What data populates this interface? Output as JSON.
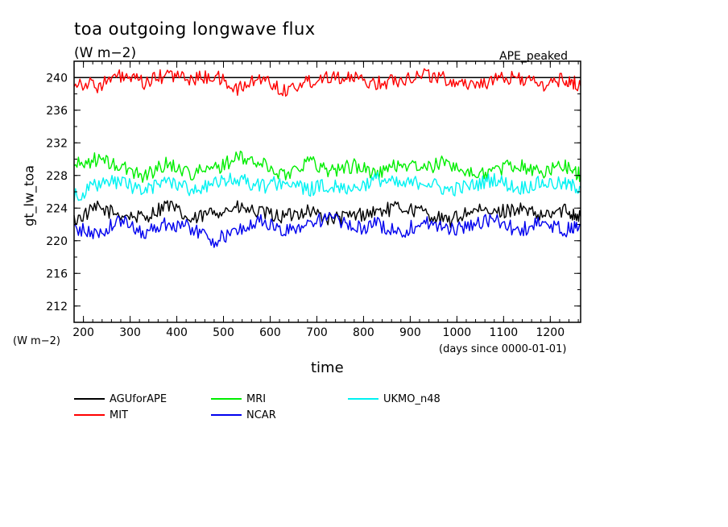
{
  "chart_data": {
    "type": "line",
    "title": "toa outgoing longwave flux",
    "subtitle": "(W m−2)",
    "corner_label": "APE_peaked",
    "xlabel": "time",
    "ylabel": "gt_lw_toa",
    "yunit": "(W m−2)",
    "xunit": "(days since 0000-01-01)",
    "xlim": [
      180,
      1265
    ],
    "ylim": [
      210,
      242
    ],
    "x_ticks": [
      "200",
      "300",
      "400",
      "500",
      "600",
      "700",
      "800",
      "900",
      "1000",
      "1100",
      "1200"
    ],
    "y_ticks": [
      "212",
      "216",
      "220",
      "224",
      "228",
      "232",
      "236",
      "240"
    ],
    "reference_line": 240,
    "grid": false,
    "legend_position": "bottom",
    "series": [
      {
        "name": "AGUforAPE",
        "color": "#000000",
        "x": [
          180,
          230,
          280,
          330,
          380,
          430,
          480,
          530,
          580,
          630,
          680,
          730,
          780,
          830,
          880,
          930,
          980,
          1030,
          1080,
          1130,
          1180,
          1230,
          1265
        ],
        "values": [
          222.5,
          224.0,
          223.2,
          222.8,
          224.5,
          222.4,
          223.6,
          224.0,
          223.4,
          222.9,
          223.8,
          222.6,
          223.1,
          223.6,
          224.1,
          223.5,
          222.3,
          223.7,
          223.4,
          224.0,
          222.9,
          223.8,
          223.0
        ]
      },
      {
        "name": "MIT",
        "color": "#ff0000",
        "x": [
          180,
          230,
          280,
          330,
          380,
          430,
          480,
          530,
          580,
          630,
          680,
          730,
          780,
          830,
          880,
          930,
          980,
          1030,
          1080,
          1130,
          1180,
          1230,
          1265
        ],
        "values": [
          239.5,
          239.0,
          240.2,
          239.3,
          240.4,
          239.8,
          240.2,
          238.5,
          240.0,
          238.4,
          239.5,
          240.3,
          239.8,
          239.3,
          239.8,
          240.5,
          239.7,
          239.2,
          239.6,
          240.1,
          239.0,
          239.8,
          239.0
        ]
      },
      {
        "name": "MRI",
        "color": "#00ee00",
        "x": [
          180,
          230,
          280,
          330,
          380,
          430,
          480,
          530,
          580,
          630,
          680,
          730,
          780,
          830,
          880,
          930,
          980,
          1030,
          1080,
          1130,
          1180,
          1230,
          1265
        ],
        "values": [
          229.2,
          230.0,
          229.0,
          228.0,
          229.5,
          228.3,
          228.8,
          230.2,
          229.5,
          228.0,
          229.8,
          228.6,
          229.2,
          228.2,
          229.5,
          228.8,
          229.7,
          228.1,
          228.6,
          229.4,
          228.3,
          229.3,
          228.0
        ]
      },
      {
        "name": "NCAR",
        "color": "#0000ee",
        "x": [
          180,
          230,
          280,
          330,
          380,
          430,
          480,
          530,
          580,
          630,
          680,
          730,
          780,
          830,
          880,
          930,
          980,
          1030,
          1080,
          1130,
          1180,
          1230,
          1265
        ],
        "values": [
          221.5,
          220.8,
          222.5,
          221.0,
          222.2,
          221.6,
          220.0,
          221.2,
          222.5,
          221.0,
          222.2,
          222.8,
          221.5,
          222.0,
          221.0,
          222.4,
          221.3,
          221.9,
          222.6,
          221.2,
          222.1,
          221.3,
          221.8
        ]
      },
      {
        "name": "UKMO_n48",
        "color": "#00f2f2",
        "x": [
          180,
          230,
          280,
          330,
          380,
          430,
          480,
          530,
          580,
          630,
          680,
          730,
          780,
          830,
          880,
          930,
          980,
          1030,
          1080,
          1130,
          1180,
          1230,
          1265
        ],
        "values": [
          225.5,
          226.8,
          227.3,
          226.0,
          227.5,
          226.3,
          226.9,
          227.6,
          226.6,
          227.3,
          226.2,
          226.9,
          226.4,
          227.6,
          226.8,
          227.3,
          226.2,
          226.7,
          227.6,
          226.4,
          227.1,
          226.9,
          226.5
        ]
      }
    ]
  }
}
